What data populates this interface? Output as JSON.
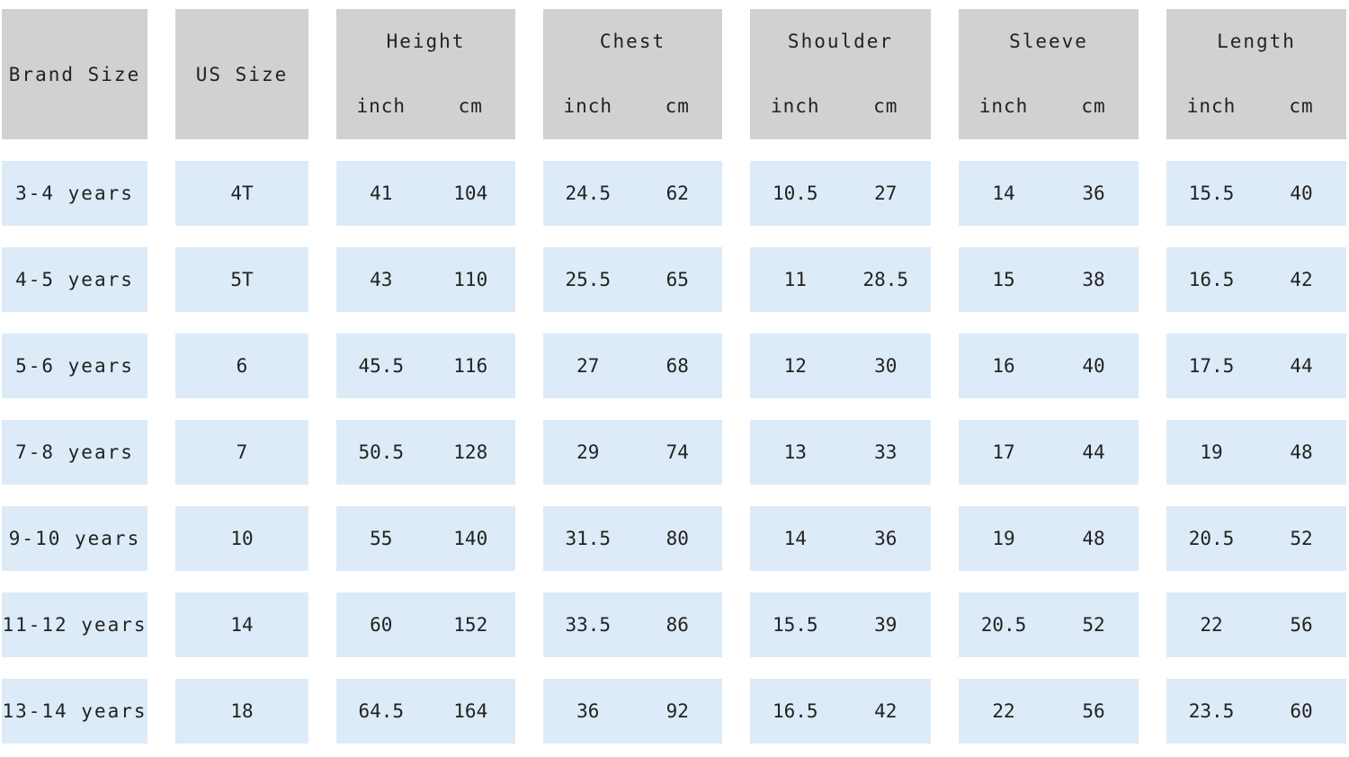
{
  "headers": {
    "brand_size": "Brand Size",
    "us_size": "US Size",
    "groups": [
      {
        "title": "Height",
        "unit_a": "inch",
        "unit_b": "cm"
      },
      {
        "title": "Chest",
        "unit_a": "inch",
        "unit_b": "cm"
      },
      {
        "title": "Shoulder",
        "unit_a": "inch",
        "unit_b": "cm"
      },
      {
        "title": "Sleeve",
        "unit_a": "inch",
        "unit_b": "cm"
      },
      {
        "title": "Length",
        "unit_a": "inch",
        "unit_b": "cm"
      }
    ]
  },
  "rows": [
    {
      "brand": "3-4 years",
      "us": "4T",
      "vals": [
        [
          "41",
          "104"
        ],
        [
          "24.5",
          "62"
        ],
        [
          "10.5",
          "27"
        ],
        [
          "14",
          "36"
        ],
        [
          "15.5",
          "40"
        ]
      ]
    },
    {
      "brand": "4-5 years",
      "us": "5T",
      "vals": [
        [
          "43",
          "110"
        ],
        [
          "25.5",
          "65"
        ],
        [
          "11",
          "28.5"
        ],
        [
          "15",
          "38"
        ],
        [
          "16.5",
          "42"
        ]
      ]
    },
    {
      "brand": "5-6 years",
      "us": "6",
      "vals": [
        [
          "45.5",
          "116"
        ],
        [
          "27",
          "68"
        ],
        [
          "12",
          "30"
        ],
        [
          "16",
          "40"
        ],
        [
          "17.5",
          "44"
        ]
      ]
    },
    {
      "brand": "7-8 years",
      "us": "7",
      "vals": [
        [
          "50.5",
          "128"
        ],
        [
          "29",
          "74"
        ],
        [
          "13",
          "33"
        ],
        [
          "17",
          "44"
        ],
        [
          "19",
          "48"
        ]
      ]
    },
    {
      "brand": "9-10 years",
      "us": "10",
      "vals": [
        [
          "55",
          "140"
        ],
        [
          "31.5",
          "80"
        ],
        [
          "14",
          "36"
        ],
        [
          "19",
          "48"
        ],
        [
          "20.5",
          "52"
        ]
      ]
    },
    {
      "brand": "11-12 years",
      "us": "14",
      "vals": [
        [
          "60",
          "152"
        ],
        [
          "33.5",
          "86"
        ],
        [
          "15.5",
          "39"
        ],
        [
          "20.5",
          "52"
        ],
        [
          "22",
          "56"
        ]
      ]
    },
    {
      "brand": "13-14 years",
      "us": "18",
      "vals": [
        [
          "64.5",
          "164"
        ],
        [
          "36",
          "92"
        ],
        [
          "16.5",
          "42"
        ],
        [
          "22",
          "56"
        ],
        [
          "23.5",
          "60"
        ]
      ]
    }
  ]
}
